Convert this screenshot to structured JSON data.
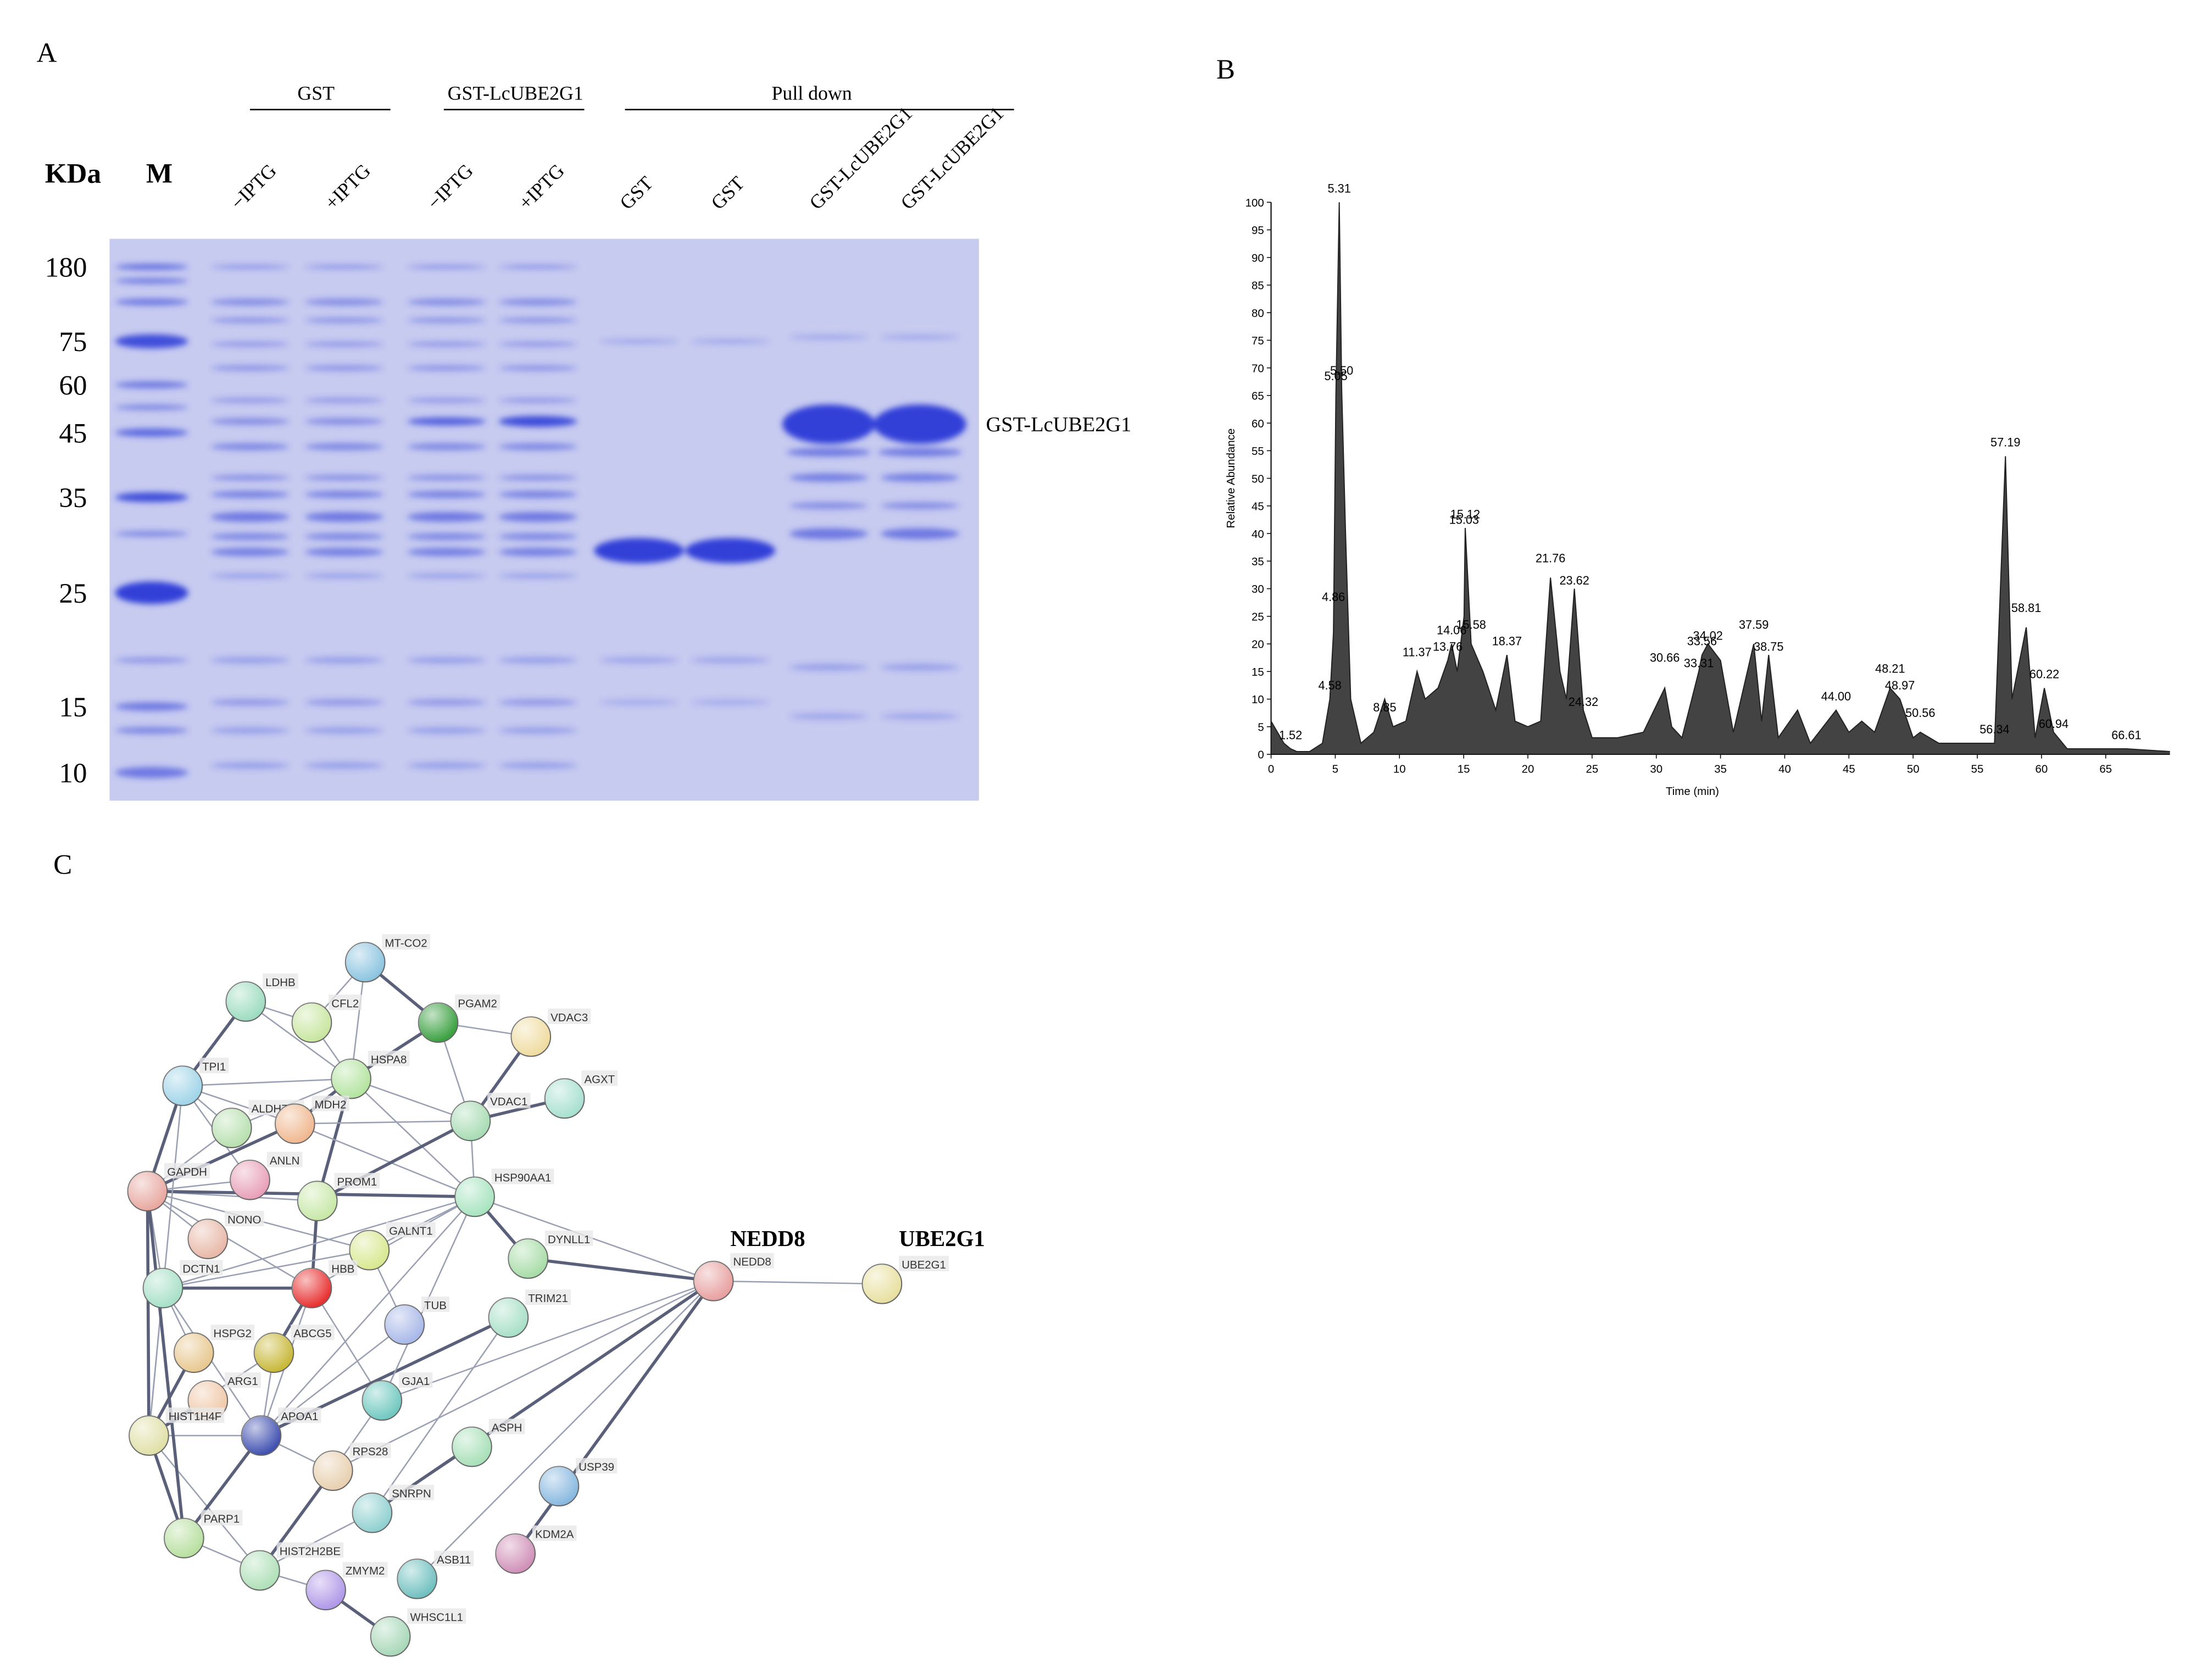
{
  "panel_a": {
    "label": "A",
    "header_groups": [
      "GST",
      "GST-LcUBE2G1",
      "Pull down"
    ],
    "unit_label": "KDa",
    "marker_label": "M",
    "lanes": [
      "−IPTG",
      "+IPTG",
      "−IPTG",
      "+IPTG",
      "GST",
      "GST",
      "GST-LcUBE2G1",
      "GST-LcUBE2G1"
    ],
    "marker_sizes": [
      180,
      75,
      60,
      45,
      35,
      25,
      15,
      10
    ],
    "band_label": "GST-LcUBE2G1"
  },
  "panel_b": {
    "label": "B",
    "chart_data": {
      "type": "line",
      "x_label": "Time (min)",
      "y_label": "Relative Abundance",
      "color": "#222222",
      "x": [
        0,
        0.5,
        1,
        1.52,
        2,
        3,
        4,
        4.58,
        4.86,
        5.05,
        5.31,
        5.5,
        5.8,
        6.2,
        7,
        8,
        8.85,
        9.5,
        10.5,
        11.37,
        12,
        13,
        13.76,
        14.06,
        14.5,
        15.03,
        15.12,
        15.58,
        16.5,
        17.5,
        18.37,
        19,
        20,
        21,
        21.76,
        22.5,
        23,
        23.62,
        24.32,
        25,
        27,
        29,
        30.66,
        31.2,
        32,
        33.31,
        33.56,
        34.02,
        35,
        36,
        37.59,
        38.2,
        38.75,
        39.5,
        41,
        42,
        44,
        45,
        46,
        47,
        48.21,
        48.97,
        50,
        50.56,
        52,
        54,
        56.34,
        57.19,
        57.7,
        58.81,
        59.5,
        60.22,
        60.94,
        62,
        65,
        66.61,
        70
      ],
      "values": [
        6,
        4,
        2,
        1,
        0.5,
        0.5,
        2,
        10,
        22,
        65,
        100,
        66,
        40,
        10,
        2,
        4,
        10,
        5,
        6,
        15,
        10,
        12,
        17,
        20,
        15,
        25,
        41,
        20,
        15,
        8,
        18,
        6,
        5,
        6,
        32,
        15,
        10,
        30,
        8,
        3,
        3,
        4,
        12,
        5,
        3,
        15,
        18,
        20,
        17,
        4,
        20,
        6,
        18,
        3,
        8,
        2,
        8,
        4,
        6,
        4,
        12,
        10,
        3,
        4,
        2,
        2,
        2,
        54,
        10,
        23,
        3,
        12,
        4,
        1,
        1,
        1,
        0.5
      ],
      "peak_labels": [
        "1.52",
        "4.58",
        "4.86",
        "5.05",
        "5.31",
        "5.50",
        "8.85",
        "11.37",
        "13.76",
        "14.06",
        "15.03",
        "15.12",
        "15.58",
        "18.37",
        "21.76",
        "23.62",
        "24.32",
        "30.66",
        "33.31",
        "33.56",
        "34.02",
        "37.59",
        "38.75",
        "44.00",
        "48.21",
        "48.97",
        "50.56",
        "56.34",
        "57.19",
        "58.81",
        "60.22",
        "60.94",
        "66.61"
      ],
      "peak_x": [
        1.52,
        4.58,
        4.86,
        5.05,
        5.31,
        5.5,
        8.85,
        11.37,
        13.76,
        14.06,
        15.03,
        15.12,
        15.58,
        18.37,
        21.76,
        23.62,
        24.32,
        30.66,
        33.31,
        33.56,
        34.02,
        37.59,
        38.75,
        44,
        48.21,
        48.97,
        50.56,
        56.34,
        57.19,
        58.81,
        60.22,
        60.94,
        66.61
      ],
      "peak_y": [
        2,
        11,
        27,
        67,
        101,
        68,
        7,
        17,
        18,
        21,
        41,
        42,
        22,
        19,
        34,
        30,
        8,
        16,
        15,
        19,
        20,
        22,
        18,
        9,
        14,
        11,
        6,
        3,
        55,
        25,
        13,
        4,
        2
      ],
      "xlim": [
        0,
        70
      ],
      "ylim": [
        0,
        100
      ],
      "xticks": [
        0,
        5,
        10,
        15,
        20,
        25,
        30,
        35,
        40,
        45,
        50,
        55,
        60,
        65
      ],
      "yticks": [
        0,
        5,
        10,
        15,
        20,
        25,
        30,
        35,
        40,
        45,
        50,
        55,
        60,
        65,
        70,
        75,
        80,
        85,
        90,
        95,
        100
      ]
    }
  },
  "panel_c": {
    "label": "C",
    "highlight_labels": [
      "NEDD8",
      "UBE2G1"
    ],
    "nodes": [
      "MT-CO2",
      "LDHB",
      "CFL2",
      "PGAM2",
      "VDAC3",
      "HSPA8",
      "TPI1",
      "AGXT",
      "ALDH7A1",
      "MDH2",
      "VDAC1",
      "ANLN",
      "GAPDH",
      "PROM1",
      "HSP90AA1",
      "NONO",
      "DYNLL1",
      "GALNT1",
      "DCTN1",
      "HBB",
      "TRIM21",
      "TUB",
      "HSPG2",
      "ABCG5",
      "ARG1",
      "GJA1",
      "HIST1H4F",
      "APOA1",
      "ASPH",
      "RPS28",
      "USP39",
      "SNRPN",
      "PARP1",
      "KDM2A",
      "HIST2H2BE",
      "ASB11",
      "ZMYM2",
      "WHSC1L1",
      "NEDD8",
      "UBE2G1"
    ]
  }
}
